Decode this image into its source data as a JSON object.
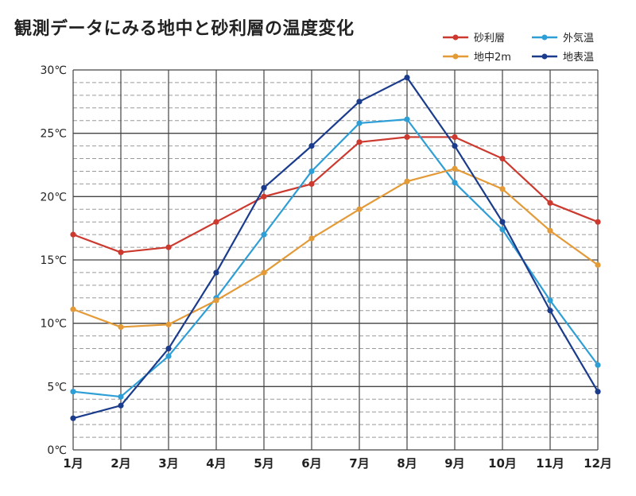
{
  "chart_data": {
    "type": "line",
    "title": "観測データにみる地中と砂利層の温度変化",
    "categories": [
      "1月",
      "2月",
      "3月",
      "4月",
      "5月",
      "6月",
      "7月",
      "8月",
      "9月",
      "10月",
      "11月",
      "12月"
    ],
    "ylim": [
      0,
      30
    ],
    "y_ticks": [
      "0℃",
      "5℃",
      "10℃",
      "15℃",
      "20℃",
      "25℃",
      "30℃"
    ],
    "y_tick_values": [
      0,
      5,
      10,
      15,
      20,
      25,
      30
    ],
    "grid": true,
    "legend_position": "top-right",
    "series": [
      {
        "name": "砂利層",
        "color": "#cc3a2f",
        "values": [
          17.0,
          15.6,
          16.0,
          18.0,
          20.0,
          21.0,
          24.3,
          24.7,
          24.7,
          23.0,
          19.5,
          18.0
        ]
      },
      {
        "name": "外気温",
        "color": "#2e9fd6",
        "values": [
          4.6,
          4.2,
          7.4,
          12.0,
          17.0,
          22.0,
          25.8,
          26.1,
          21.1,
          17.4,
          11.8,
          6.7
        ]
      },
      {
        "name": "地中2m",
        "color": "#e39a37",
        "values": [
          11.1,
          9.7,
          9.9,
          11.8,
          14.0,
          16.7,
          19.0,
          21.2,
          22.2,
          20.6,
          17.3,
          14.6
        ]
      },
      {
        "name": "地表温",
        "color": "#1b3c8c",
        "values": [
          2.5,
          3.5,
          8.0,
          14.0,
          20.7,
          24.0,
          27.5,
          29.4,
          24.0,
          18.0,
          11.0,
          4.6
        ]
      }
    ]
  }
}
